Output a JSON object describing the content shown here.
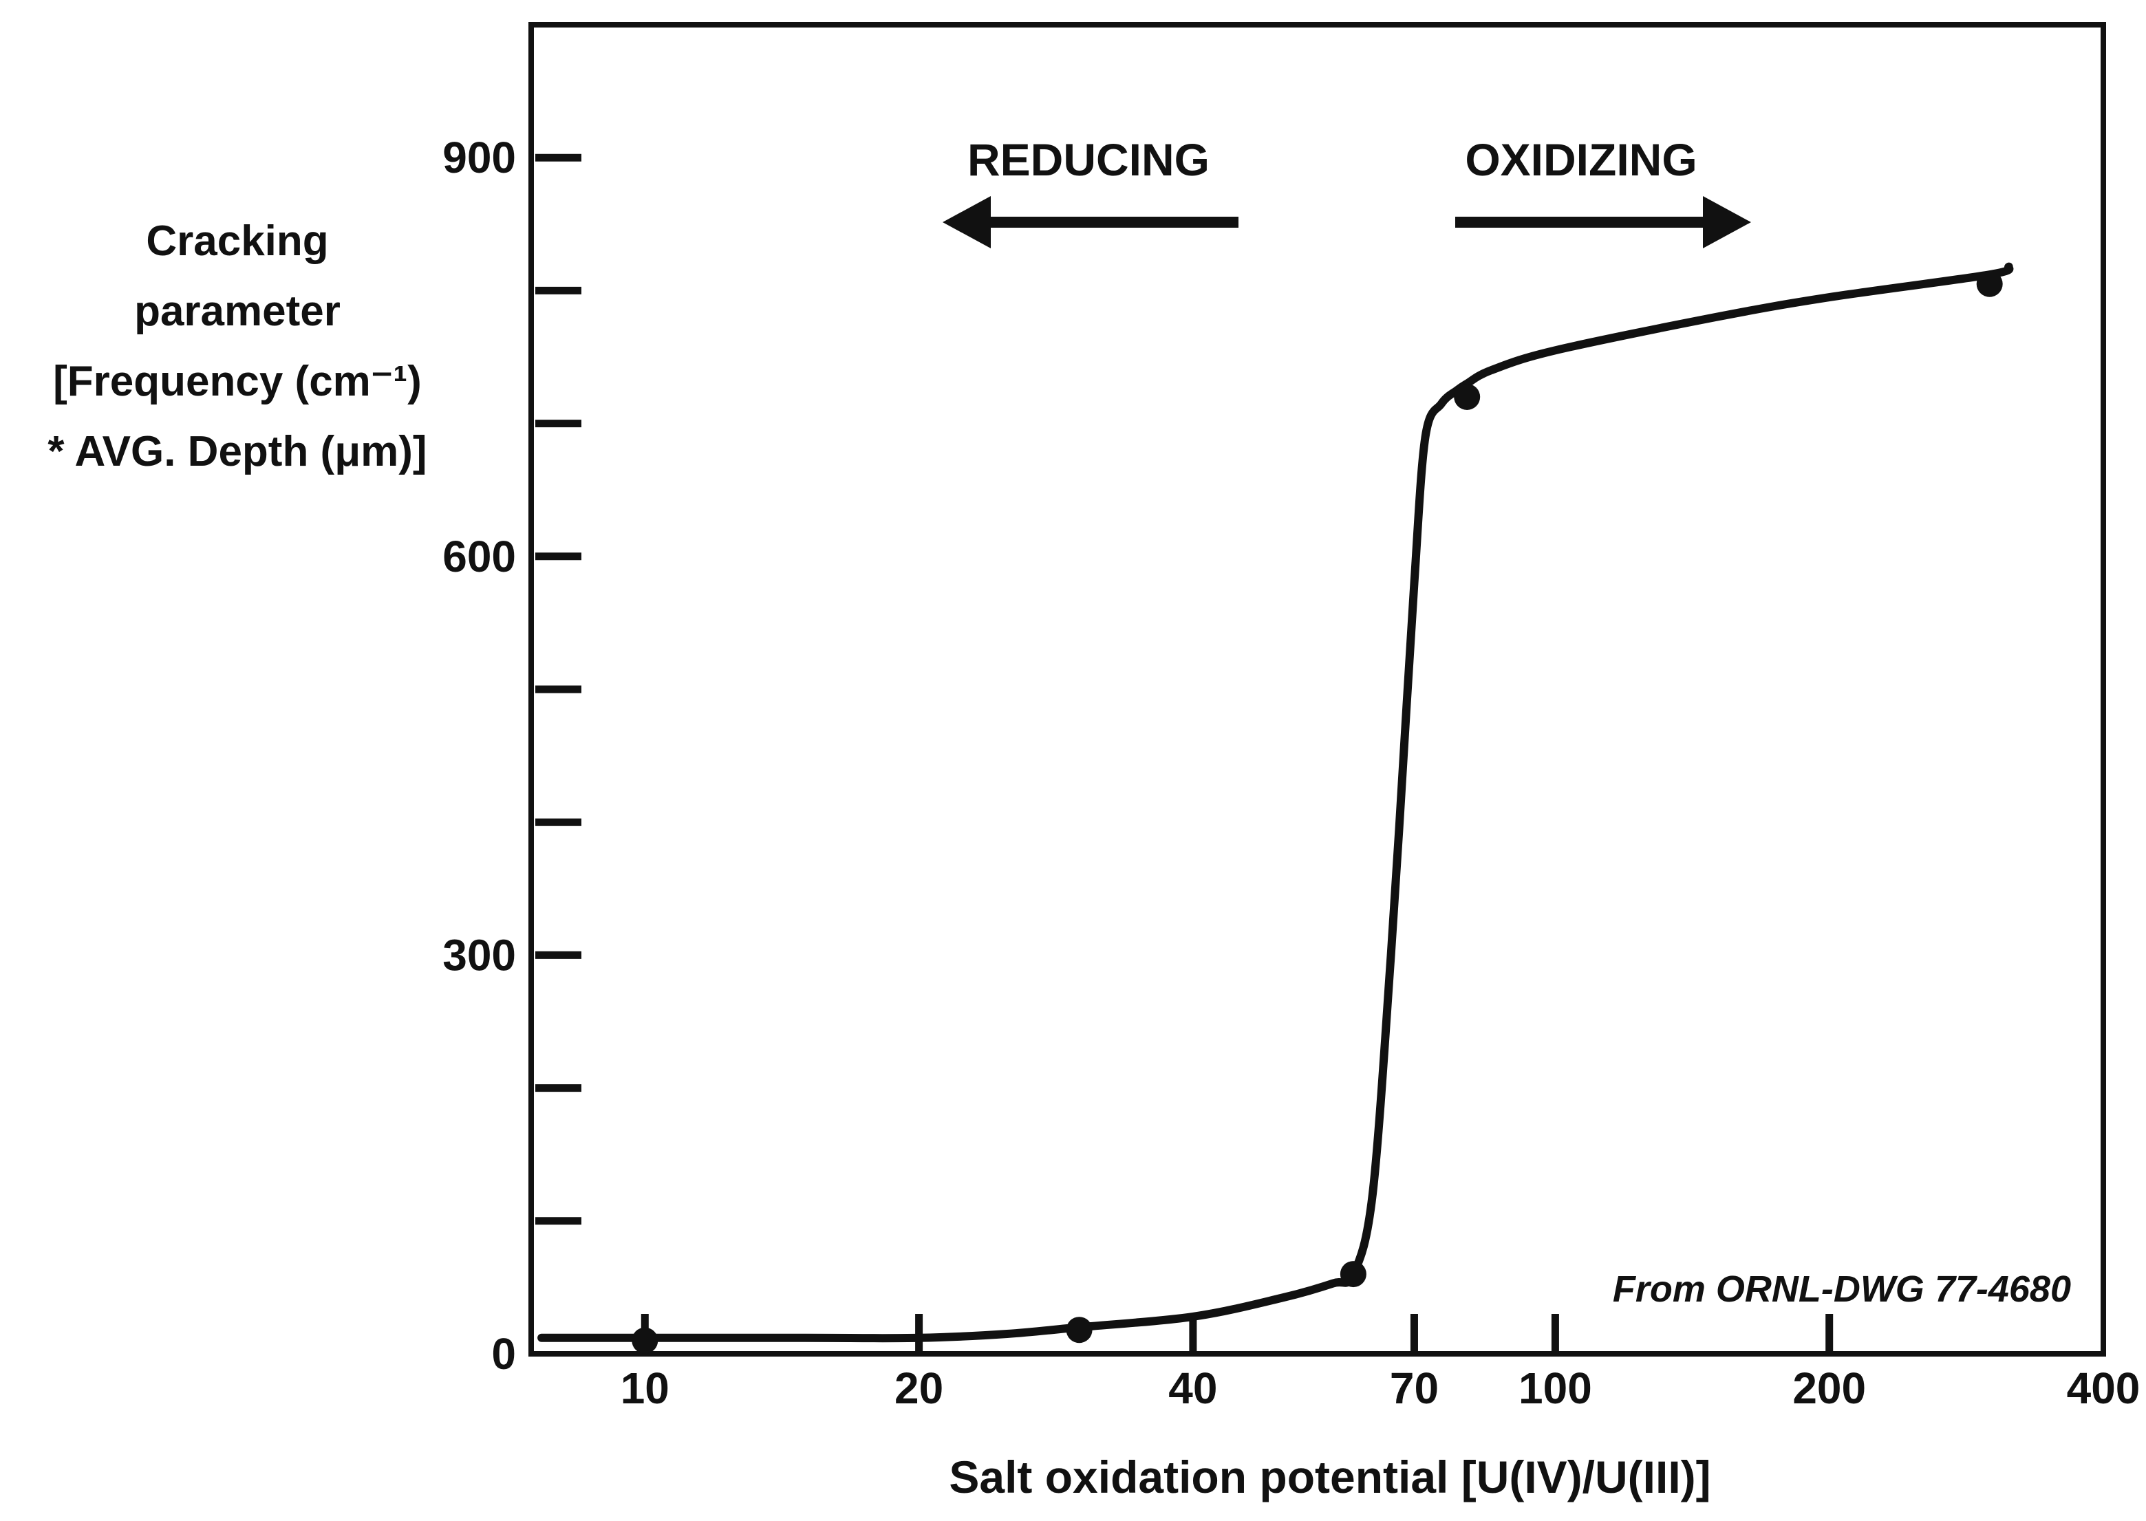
{
  "chart_data": {
    "type": "line",
    "title": "",
    "xlabel": "Salt oxidation potential [U(IV)/U(III)]",
    "ylabel_lines": [
      "Cracking",
      "parameter",
      "[Frequency (cm⁻¹)",
      "* AVG. Depth (μm)]"
    ],
    "x_scale": "log",
    "xlim": [
      7.5,
      400
    ],
    "ylim": [
      0,
      1000
    ],
    "x_ticks": [
      10,
      20,
      40,
      70,
      100,
      200,
      400
    ],
    "x_tick_labels": [
      "10",
      "20",
      "40",
      "70",
      "100",
      "200",
      "400"
    ],
    "y_major_ticks": [
      0,
      300,
      600,
      900
    ],
    "y_tick_labels": [
      "0",
      "300",
      "600",
      "900"
    ],
    "y_minor_ticks": [
      100,
      200,
      400,
      500,
      700,
      800
    ],
    "series": [
      {
        "name": "Cracking parameter",
        "points": {
          "x": [
            10,
            30,
            60,
            80,
            300
          ],
          "y": [
            10,
            18,
            60,
            720,
            805
          ]
        },
        "curve": {
          "x": [
            7.7,
            10,
            15,
            20,
            25,
            30,
            40,
            50,
            57,
            60,
            63,
            66,
            68,
            70,
            72,
            75,
            78,
            80,
            85,
            100,
            150,
            200,
            300,
            315
          ],
          "y": [
            12,
            12,
            12,
            12,
            15,
            20,
            28,
            42,
            53,
            60,
            120,
            300,
            440,
            580,
            690,
            715,
            725,
            730,
            740,
            755,
            780,
            795,
            812,
            818
          ]
        }
      }
    ],
    "annotations": [
      {
        "text": "REDUCING",
        "arrow": "left"
      },
      {
        "text": "OXIDIZING",
        "arrow": "right"
      },
      {
        "text": "From ORNL-DWG 77-4680",
        "placement": "bottom-right"
      }
    ],
    "grid": false,
    "legend": "none"
  },
  "colors": {
    "ink": "#111111",
    "background": "#ffffff"
  }
}
